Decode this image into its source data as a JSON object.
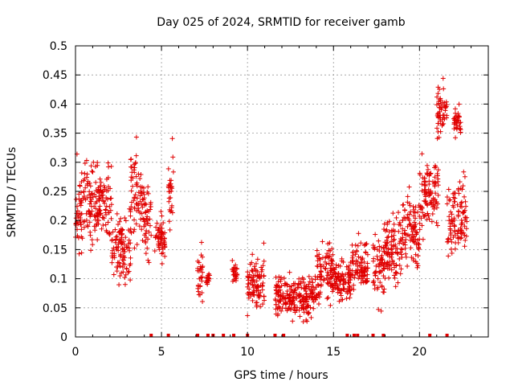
{
  "chart_data": {
    "type": "scatter",
    "title": "Day 025 of 2024, SRMTID for receiver gamb",
    "xlabel": "GPS time / hours",
    "ylabel": "SRMTID / TECUs",
    "xlim": [
      0,
      24
    ],
    "ylim": [
      0,
      0.5
    ],
    "xticks": [
      0,
      5,
      10,
      15,
      20
    ],
    "yticks": [
      0,
      0.05,
      0.1,
      0.15,
      0.2,
      0.25,
      0.3,
      0.35,
      0.4,
      0.45,
      0.5
    ],
    "ytick_labels": [
      "0",
      "0.05",
      "0.1",
      "0.15",
      "0.2",
      "0.25",
      "0.3",
      "0.35",
      "0.4",
      "0.45",
      "0.5"
    ],
    "grid": true,
    "marker": "+",
    "marker_color": "#e00000",
    "gap_marker_color": "#e00000",
    "data_gaps_x": [
      4.4,
      5.4,
      7.1,
      7.7,
      8.0,
      8.6,
      9.2,
      10.0,
      11.6,
      12.1,
      15.8,
      16.2,
      16.4,
      17.3,
      17.9,
      20.6,
      21.6
    ],
    "clusters": [
      {
        "x": [
          0.0,
          1.0
        ],
        "y_center": 0.22,
        "y_spread": 0.06
      },
      {
        "x": [
          1.0,
          2.1
        ],
        "y_center": 0.23,
        "y_spread": 0.05
      },
      {
        "x": [
          2.1,
          3.2
        ],
        "y_center": 0.15,
        "y_spread": 0.05
      },
      {
        "x": [
          3.2,
          3.9
        ],
        "y_center": 0.24,
        "y_spread": 0.06
      },
      {
        "x": [
          3.9,
          4.4
        ],
        "y_center": 0.2,
        "y_spread": 0.05
      },
      {
        "x": [
          4.6,
          5.2
        ],
        "y_center": 0.17,
        "y_spread": 0.03
      },
      {
        "x": [
          5.4,
          5.7
        ],
        "y_center": 0.25,
        "y_spread": 0.08
      },
      {
        "x": [
          7.1,
          7.4
        ],
        "y_center": 0.11,
        "y_spread": 0.04
      },
      {
        "x": [
          7.6,
          7.8
        ],
        "y_center": 0.1,
        "y_spread": 0.01
      },
      {
        "x": [
          9.1,
          9.4
        ],
        "y_center": 0.115,
        "y_spread": 0.02
      },
      {
        "x": [
          10.0,
          11.0
        ],
        "y_center": 0.09,
        "y_spread": 0.04
      },
      {
        "x": [
          11.6,
          12.5
        ],
        "y_center": 0.07,
        "y_spread": 0.03
      },
      {
        "x": [
          12.5,
          14.0
        ],
        "y_center": 0.065,
        "y_spread": 0.03
      },
      {
        "x": [
          14.0,
          15.0
        ],
        "y_center": 0.11,
        "y_spread": 0.04
      },
      {
        "x": [
          15.0,
          16.0
        ],
        "y_center": 0.095,
        "y_spread": 0.03
      },
      {
        "x": [
          16.0,
          17.0
        ],
        "y_center": 0.12,
        "y_spread": 0.04
      },
      {
        "x": [
          17.3,
          18.0
        ],
        "y_center": 0.12,
        "y_spread": 0.05
      },
      {
        "x": [
          18.0,
          19.0
        ],
        "y_center": 0.15,
        "y_spread": 0.05
      },
      {
        "x": [
          19.0,
          20.0
        ],
        "y_center": 0.18,
        "y_spread": 0.05
      },
      {
        "x": [
          20.0,
          20.5
        ],
        "y_center": 0.24,
        "y_spread": 0.06
      },
      {
        "x": [
          20.5,
          21.1
        ],
        "y_center": 0.25,
        "y_spread": 0.04
      },
      {
        "x": [
          21.0,
          21.6
        ],
        "y_center": 0.39,
        "y_spread": 0.04
      },
      {
        "x": [
          21.6,
          22.1
        ],
        "y_center": 0.2,
        "y_spread": 0.05
      },
      {
        "x": [
          22.0,
          22.4
        ],
        "y_center": 0.37,
        "y_spread": 0.02
      },
      {
        "x": [
          22.2,
          22.8
        ],
        "y_center": 0.21,
        "y_spread": 0.05
      }
    ]
  }
}
